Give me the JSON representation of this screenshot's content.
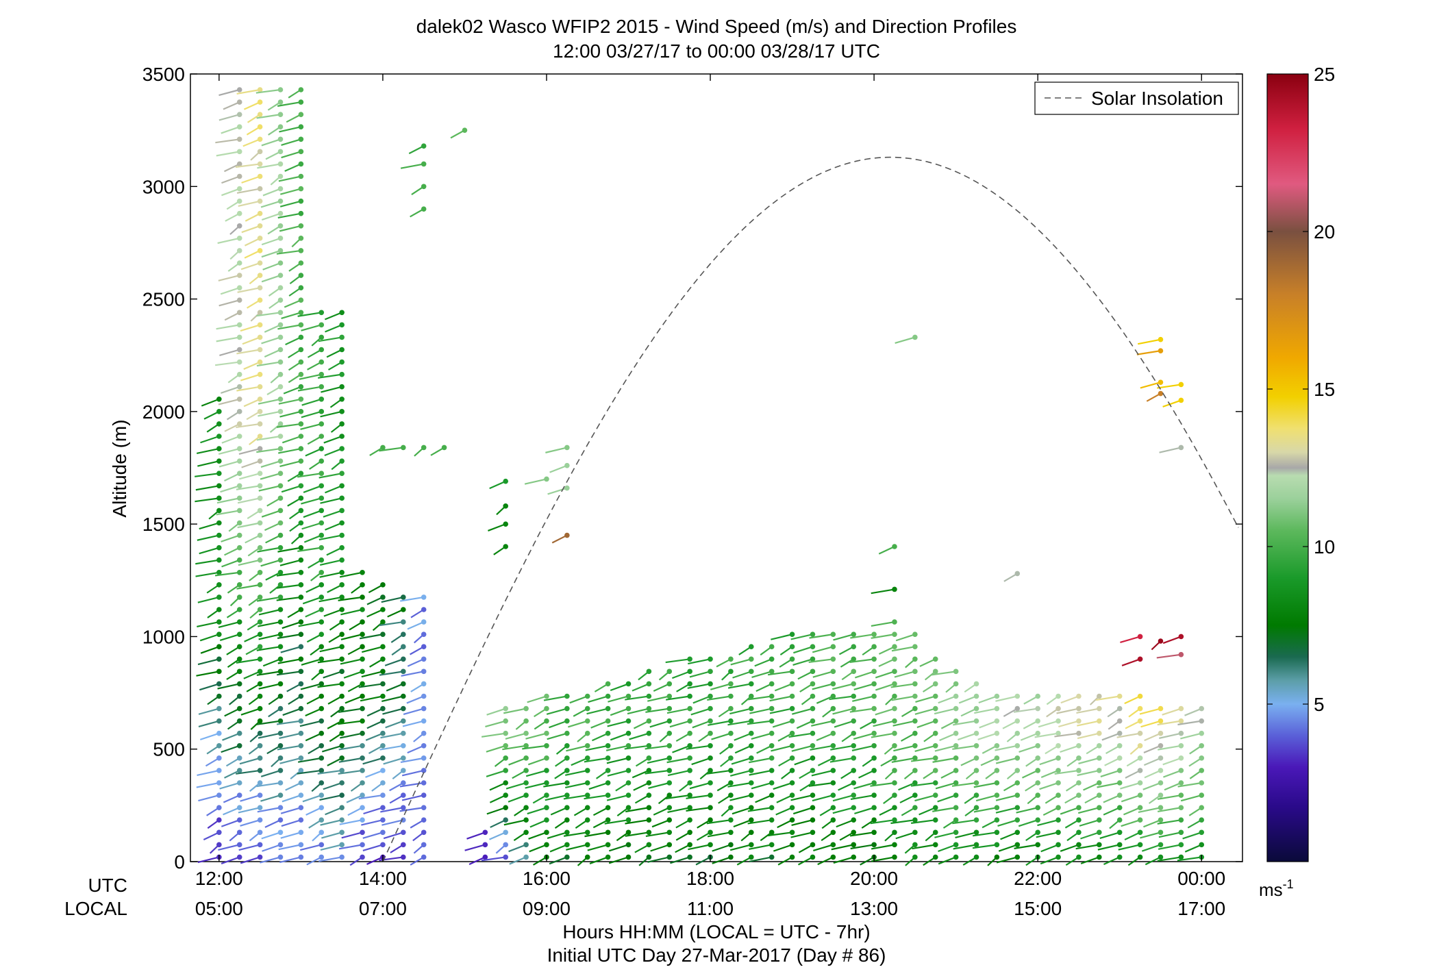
{
  "chart_data": {
    "type": "scatter",
    "title": "dalek02 Wasco WFIP2 2015 - Wind Speed (m/s) and Direction Profiles",
    "subtitle": "12:00 03/27/17 to 00:00 03/28/17  UTC",
    "ylabel": "Altitude (m)",
    "xlabel": "Hours HH:MM  (LOCAL = UTC - 7hr)",
    "xlabel2": "Initial UTC Day 27-Mar-2017 (Day # 86)",
    "xrow_utc_label": "UTC",
    "xrow_local_label": "LOCAL",
    "ylim": [
      0,
      3500
    ],
    "xlim_hours_utc": [
      11.65,
      24.5
    ],
    "yticks": [
      0,
      500,
      1000,
      1500,
      2000,
      2500,
      3000,
      3500
    ],
    "ytick_labels": [
      "0",
      "500",
      "1000",
      "1500",
      "2000",
      "2500",
      "3000",
      "3500"
    ],
    "xticks_hours": [
      12,
      14,
      16,
      18,
      20,
      22,
      24
    ],
    "xtick_labels_utc": [
      "12:00",
      "14:00",
      "16:00",
      "18:00",
      "20:00",
      "22:00",
      "00:00"
    ],
    "xtick_labels_local": [
      "05:00",
      "07:00",
      "09:00",
      "11:00",
      "13:00",
      "15:00",
      "17:00"
    ],
    "legend": {
      "position": "top-right",
      "entries": [
        "Solar Insolation"
      ]
    },
    "colorbar": {
      "unit_label": "ms",
      "unit_exponent": "-1",
      "range": [
        0,
        25
      ],
      "ticks": [
        5,
        10,
        15,
        20,
        25
      ],
      "tick_labels": [
        "5",
        "10",
        "15",
        "20",
        "25"
      ]
    },
    "solar_insolation": {
      "peak_hour": 20.2,
      "peak_altitude": 3130,
      "half_width_hours": 6.2,
      "line_style": "dashed"
    },
    "scans": [
      {
        "hour": 12.0,
        "top": 2100,
        "speed_low": 3.0,
        "speed_high": 8.0
      },
      {
        "hour": 12.25,
        "top": 3450,
        "speed_low": 3.5,
        "speed_high": 12.5
      },
      {
        "hour": 12.5,
        "top": 3450,
        "speed_low": 3.5,
        "speed_high": 13.5
      },
      {
        "hour": 12.75,
        "top": 3450,
        "speed_low": 4.0,
        "speed_high": 11.5
      },
      {
        "hour": 13.0,
        "top": 3450,
        "speed_low": 4.0,
        "speed_high": 9.5
      },
      {
        "hour": 13.25,
        "top": 2450,
        "speed_low": 4.5,
        "speed_high": 9.0
      },
      {
        "hour": 13.5,
        "top": 2450,
        "speed_low": 5.0,
        "speed_high": 8.5
      },
      {
        "hour": 13.75,
        "top": 1300,
        "speed_low": 3.5,
        "speed_high": 7.5
      },
      {
        "hour": 14.0,
        "top": 1280,
        "speed_low": 3.0,
        "speed_high": 7.0
      },
      {
        "hour": 14.25,
        "top": 1220,
        "speed_low": 3.0,
        "speed_high": 6.5
      },
      {
        "hour": 14.5,
        "top": 1200,
        "speed_low": 3.5,
        "speed_high": 4.5
      },
      {
        "hour": 15.25,
        "top": 150,
        "speed_low": 3.0,
        "speed_high": 4.0
      },
      {
        "hour": 15.5,
        "top": 700,
        "speed_low": 4.0,
        "speed_high": 11.0
      },
      {
        "hour": 15.75,
        "top": 720,
        "speed_low": 6.0,
        "speed_high": 10.5
      },
      {
        "hour": 16.0,
        "top": 740,
        "speed_low": 7.0,
        "speed_high": 10.0
      },
      {
        "hour": 16.25,
        "top": 760,
        "speed_low": 7.0,
        "speed_high": 9.5
      },
      {
        "hour": 16.5,
        "top": 780,
        "speed_low": 7.0,
        "speed_high": 9.5
      },
      {
        "hour": 16.75,
        "top": 800,
        "speed_low": 7.0,
        "speed_high": 9.0
      },
      {
        "hour": 17.0,
        "top": 820,
        "speed_low": 7.0,
        "speed_high": 9.0
      },
      {
        "hour": 17.25,
        "top": 850,
        "speed_low": 7.0,
        "speed_high": 9.0
      },
      {
        "hour": 17.5,
        "top": 880,
        "speed_low": 7.0,
        "speed_high": 9.0
      },
      {
        "hour": 17.75,
        "top": 900,
        "speed_low": 7.0,
        "speed_high": 9.0
      },
      {
        "hour": 18.0,
        "top": 930,
        "speed_low": 7.0,
        "speed_high": 9.0
      },
      {
        "hour": 18.25,
        "top": 950,
        "speed_low": 7.0,
        "speed_high": 9.0
      },
      {
        "hour": 18.5,
        "top": 980,
        "speed_low": 7.0,
        "speed_high": 9.0
      },
      {
        "hour": 18.75,
        "top": 1000,
        "speed_low": 7.0,
        "speed_high": 9.0
      },
      {
        "hour": 19.0,
        "top": 1020,
        "speed_low": 7.0,
        "speed_high": 9.0
      },
      {
        "hour": 19.25,
        "top": 1040,
        "speed_low": 7.0,
        "speed_high": 9.0
      },
      {
        "hour": 19.5,
        "top": 1050,
        "speed_low": 7.0,
        "speed_high": 9.5
      },
      {
        "hour": 19.75,
        "top": 1060,
        "speed_low": 7.0,
        "speed_high": 9.5
      },
      {
        "hour": 20.0,
        "top": 1060,
        "speed_low": 7.0,
        "speed_high": 9.5
      },
      {
        "hour": 20.25,
        "top": 1080,
        "speed_low": 7.5,
        "speed_high": 10.0
      },
      {
        "hour": 20.5,
        "top": 1060,
        "speed_low": 7.5,
        "speed_high": 10.0
      },
      {
        "hour": 20.75,
        "top": 900,
        "speed_low": 7.5,
        "speed_high": 10.5
      },
      {
        "hour": 21.0,
        "top": 860,
        "speed_low": 7.5,
        "speed_high": 11.0
      },
      {
        "hour": 21.25,
        "top": 800,
        "speed_low": 7.5,
        "speed_high": 11.5
      },
      {
        "hour": 21.5,
        "top": 780,
        "speed_low": 7.5,
        "speed_high": 12.0
      },
      {
        "hour": 21.75,
        "top": 760,
        "speed_low": 7.5,
        "speed_high": 12.0
      },
      {
        "hour": 22.0,
        "top": 760,
        "speed_low": 7.5,
        "speed_high": 12.0
      },
      {
        "hour": 22.25,
        "top": 740,
        "speed_low": 7.5,
        "speed_high": 12.5
      },
      {
        "hour": 22.5,
        "top": 740,
        "speed_low": 7.5,
        "speed_high": 13.0
      },
      {
        "hour": 22.75,
        "top": 760,
        "speed_low": 7.5,
        "speed_high": 13.0
      },
      {
        "hour": 23.0,
        "top": 760,
        "speed_low": 7.5,
        "speed_high": 13.0
      },
      {
        "hour": 23.25,
        "top": 740,
        "speed_low": 8.0,
        "speed_high": 14.0
      },
      {
        "hour": 23.5,
        "top": 720,
        "speed_low": 8.0,
        "speed_high": 14.0
      },
      {
        "hour": 23.75,
        "top": 700,
        "speed_low": 8.0,
        "speed_high": 13.0
      },
      {
        "hour": 24.0,
        "top": 700,
        "speed_low": 8.0,
        "speed_high": 12.0
      }
    ],
    "isolated_barbs": [
      {
        "hour": 14.0,
        "alt": 1840,
        "speed": 9.5
      },
      {
        "hour": 14.25,
        "alt": 1840,
        "speed": 9.5
      },
      {
        "hour": 14.5,
        "alt": 1840,
        "speed": 9.5
      },
      {
        "hour": 14.75,
        "alt": 1840,
        "speed": 9.5
      },
      {
        "hour": 14.5,
        "alt": 2900,
        "speed": 9.5
      },
      {
        "hour": 14.5,
        "alt": 3000,
        "speed": 9.5
      },
      {
        "hour": 14.5,
        "alt": 3100,
        "speed": 9.5
      },
      {
        "hour": 14.5,
        "alt": 3180,
        "speed": 9.0
      },
      {
        "hour": 15.0,
        "alt": 3250,
        "speed": 10.0
      },
      {
        "hour": 15.5,
        "alt": 1400,
        "speed": 7.5
      },
      {
        "hour": 15.5,
        "alt": 1500,
        "speed": 7.5
      },
      {
        "hour": 15.5,
        "alt": 1580,
        "speed": 7.5
      },
      {
        "hour": 15.5,
        "alt": 1690,
        "speed": 8.5
      },
      {
        "hour": 16.25,
        "alt": 1450,
        "speed": 19.0
      },
      {
        "hour": 16.25,
        "alt": 1660,
        "speed": 11.5
      },
      {
        "hour": 16.25,
        "alt": 1760,
        "speed": 11.5
      },
      {
        "hour": 16.25,
        "alt": 1840,
        "speed": 11.0
      },
      {
        "hour": 16.0,
        "alt": 1700,
        "speed": 11.0
      },
      {
        "hour": 20.25,
        "alt": 1210,
        "speed": 7.5
      },
      {
        "hour": 20.25,
        "alt": 1400,
        "speed": 9.5
      },
      {
        "hour": 20.5,
        "alt": 2330,
        "speed": 11.0
      },
      {
        "hour": 21.75,
        "alt": 1280,
        "speed": 12.5
      },
      {
        "hour": 23.5,
        "alt": 2320,
        "speed": 15.0
      },
      {
        "hour": 23.5,
        "alt": 2270,
        "speed": 16.5
      },
      {
        "hour": 23.5,
        "alt": 2130,
        "speed": 15.5
      },
      {
        "hour": 23.5,
        "alt": 2080,
        "speed": 18.0
      },
      {
        "hour": 23.75,
        "alt": 2120,
        "speed": 15.0
      },
      {
        "hour": 23.75,
        "alt": 2050,
        "speed": 15.0
      },
      {
        "hour": 23.75,
        "alt": 1840,
        "speed": 12.5
      },
      {
        "hour": 23.25,
        "alt": 1000,
        "speed": 23.0
      },
      {
        "hour": 23.25,
        "alt": 900,
        "speed": 24.0
      },
      {
        "hour": 23.5,
        "alt": 980,
        "speed": 24.5
      },
      {
        "hour": 23.75,
        "alt": 1000,
        "speed": 24.0
      },
      {
        "hour": 23.75,
        "alt": 920,
        "speed": 21.0
      }
    ]
  }
}
